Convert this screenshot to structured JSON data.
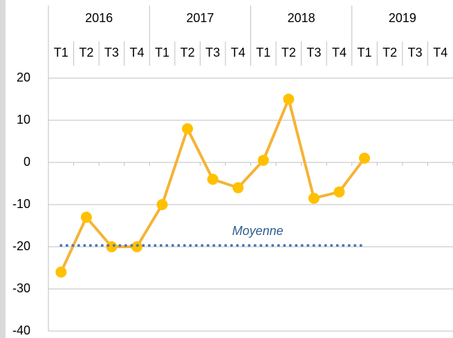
{
  "chart_data": {
    "type": "line",
    "years": [
      "2016",
      "2017",
      "2018",
      "2019"
    ],
    "categories": [
      "T1",
      "T2",
      "T3",
      "T4",
      "T1",
      "T2",
      "T3",
      "T4",
      "T1",
      "T2",
      "T3",
      "T4",
      "T1",
      "T2",
      "T3",
      "T4"
    ],
    "series": [
      {
        "color": "#f5b335",
        "marker_color": "#ffc000",
        "values": [
          -26,
          -13,
          -20,
          -20,
          -10,
          8,
          -4,
          -6,
          0.5,
          15,
          -8.5,
          -7,
          1,
          null,
          null,
          null
        ]
      },
      {
        "name": "Moyenne",
        "color": "#4f76b8",
        "style": "dotted",
        "values": [
          -19.7,
          -19.7,
          -19.7,
          -19.7,
          -19.7,
          -19.7,
          -19.7,
          -19.7,
          -19.7,
          -19.7,
          -19.7,
          -19.7,
          -19.7,
          null,
          null,
          null
        ]
      }
    ],
    "ylim": [
      -40,
      20
    ],
    "yticks": [
      -40,
      -30,
      -20,
      -10,
      0,
      10,
      20
    ],
    "grid": true
  }
}
